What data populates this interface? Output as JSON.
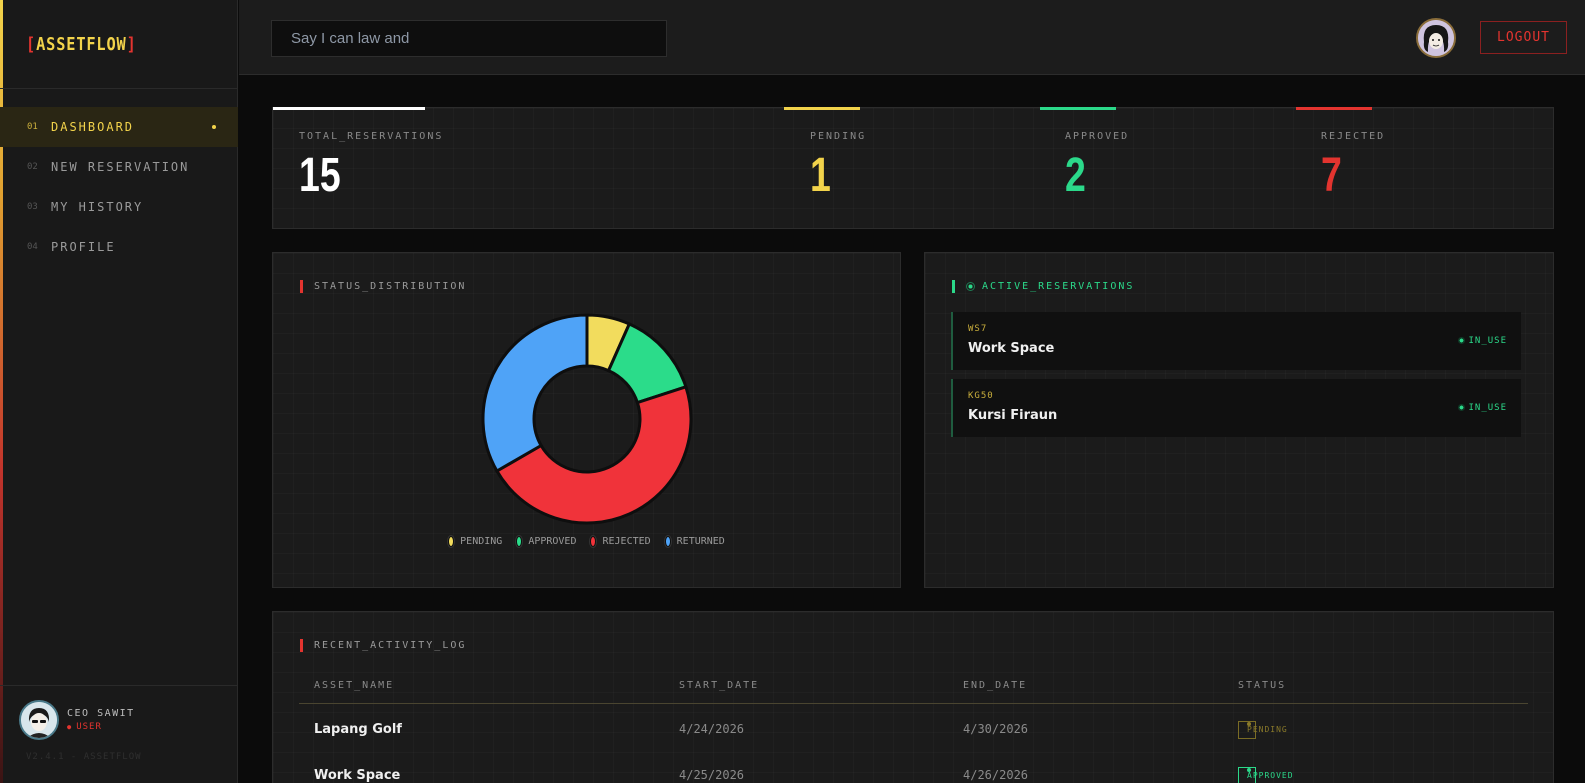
{
  "sidebar": {
    "logo": {
      "bracket_left": "[",
      "name": "ASSETFLOW",
      "bracket_right": "]"
    },
    "nav": [
      {
        "num": "01",
        "label": "DASHBOARD",
        "active": true
      },
      {
        "num": "02",
        "label": "NEW RESERVATION",
        "active": false
      },
      {
        "num": "03",
        "label": "MY HISTORY",
        "active": false
      },
      {
        "num": "04",
        "label": "PROFILE",
        "active": false
      }
    ],
    "user": {
      "name": "CEO SAWIT",
      "role": "USER"
    },
    "version": "V2.4.1 - ASSETFLOW"
  },
  "header": {
    "search_value": "Say I can law and",
    "logout_label": "LOGOUT"
  },
  "stats": {
    "total": {
      "label": "TOTAL_RESERVATIONS",
      "value": "15",
      "color": "#ffffff"
    },
    "pending": {
      "label": "PENDING",
      "value": "1",
      "color": "#f2d34b"
    },
    "approved": {
      "label": "APPROVED",
      "value": "2",
      "color": "#2bd98a"
    },
    "rejected": {
      "label": "REJECTED",
      "value": "7",
      "color": "#e3342f"
    }
  },
  "status_distribution": {
    "title": "STATUS_DISTRIBUTION",
    "legend": [
      "PENDING",
      "APPROVED",
      "REJECTED",
      "RETURNED"
    ]
  },
  "chart_data": {
    "type": "pie",
    "categories": [
      "PENDING",
      "APPROVED",
      "REJECTED",
      "RETURNED"
    ],
    "values": [
      1,
      2,
      7,
      5
    ],
    "colors": [
      "#f2dc5d",
      "#2bdc8a",
      "#f0333a",
      "#4fa3f7"
    ],
    "donut": true
  },
  "active_reservations": {
    "title": "ACTIVE_RESERVATIONS",
    "items": [
      {
        "code": "WS7",
        "name": "Work Space",
        "status": "IN_USE"
      },
      {
        "code": "KG50",
        "name": "Kursi Firaun",
        "status": "IN_USE"
      }
    ]
  },
  "activity_log": {
    "title": "RECENT_ACTIVITY_LOG",
    "columns": [
      "ASSET_NAME",
      "START_DATE",
      "END_DATE",
      "STATUS"
    ],
    "rows": [
      {
        "asset": "Lapang Golf",
        "start": "4/24/2026",
        "end": "4/30/2026",
        "status": "PENDING"
      },
      {
        "asset": "Work Space",
        "start": "4/25/2026",
        "end": "4/26/2026",
        "status": "APPROVED"
      }
    ]
  }
}
